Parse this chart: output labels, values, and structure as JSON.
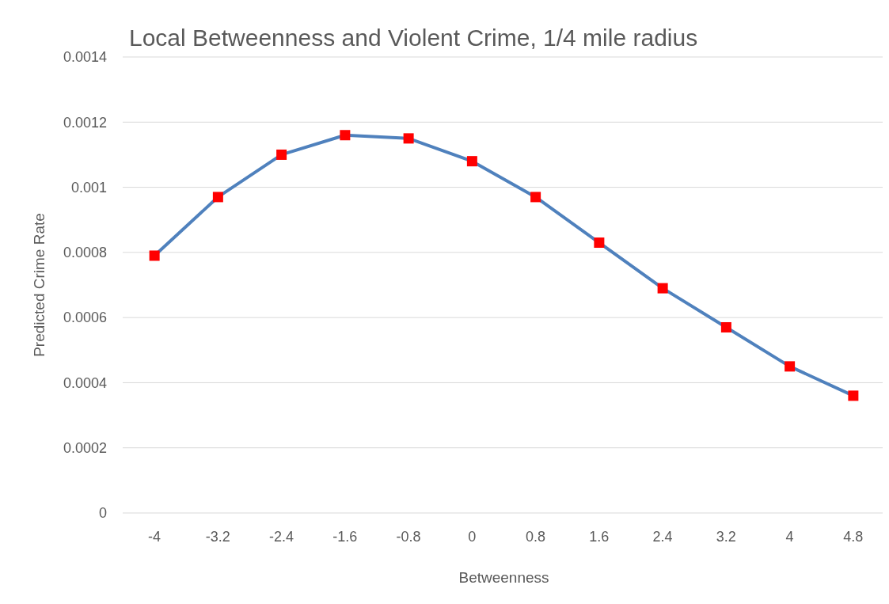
{
  "chart_data": {
    "type": "line",
    "title": "Local Betweenness and Violent Crime, 1/4 mile radius",
    "xlabel": "Betweenness",
    "ylabel": "Predicted Crime Rate",
    "categories": [
      "-4",
      "-3.2",
      "-2.4",
      "-1.6",
      "-0.8",
      "0",
      "0.8",
      "1.6",
      "2.4",
      "3.2",
      "4",
      "4.8"
    ],
    "series": [
      {
        "color": "#4f81bd",
        "colors": [
          "#ff0000",
          "#ff0000",
          "#ff0000",
          "#ff0000",
          "#ff0000",
          "#ff0000",
          "#ff0000",
          "#ff0000",
          "#ff0000",
          "#ff0000",
          "#ff0000",
          "#ff0000"
        ],
        "values": [
          0.00079,
          0.00097,
          0.0011,
          0.00116,
          0.00115,
          0.00108,
          0.00097,
          0.00083,
          0.00069,
          0.00057,
          0.00045,
          0.00036
        ]
      }
    ],
    "marker": "square",
    "ylim": [
      0,
      0.0014
    ],
    "yticks": [
      0,
      0.0002,
      0.0004,
      0.0006,
      0.0008,
      0.001,
      0.0012,
      0.0014
    ],
    "grid": "y"
  }
}
